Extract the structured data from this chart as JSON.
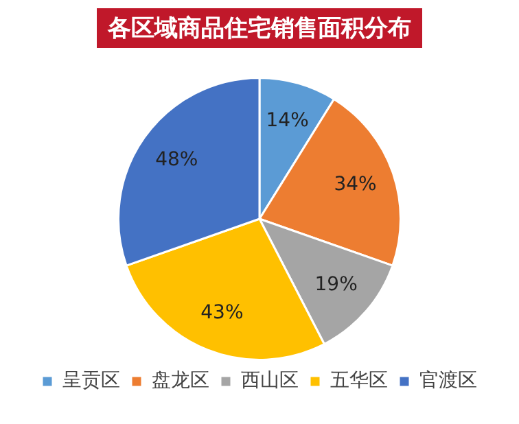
{
  "chart_data": {
    "type": "pie",
    "title": "各区域商品住宅销售面积分布",
    "categories": [
      "呈贡区",
      "盘龙区",
      "西山区",
      "五华区",
      "官渡区"
    ],
    "values": [
      14,
      34,
      19,
      43,
      48
    ],
    "value_labels": [
      "14%",
      "34%",
      "19%",
      "43%",
      "48%"
    ],
    "colors": [
      "#5b9bd5",
      "#ed7d31",
      "#a5a5a5",
      "#ffc000",
      "#4472c4"
    ],
    "legend": "bottom"
  }
}
